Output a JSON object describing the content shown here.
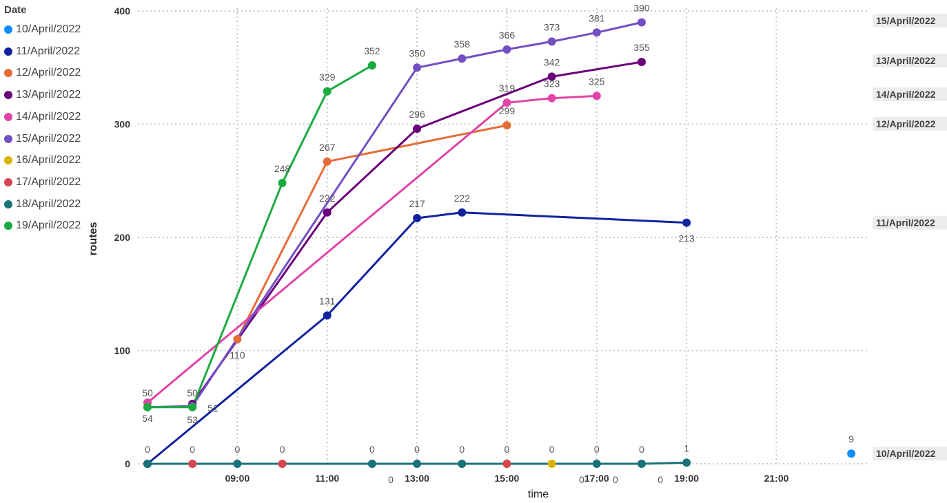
{
  "legend": {
    "title": "Date"
  },
  "chart_data": {
    "type": "line",
    "xlabel": "time",
    "ylabel": "routes",
    "xlim": [
      "07:00",
      "22:50"
    ],
    "ylim": [
      0,
      400
    ],
    "x_ticks": [
      "09:00",
      "11:00",
      "13:00",
      "15:00",
      "17:00",
      "19:00",
      "21:00"
    ],
    "y_ticks": [
      0,
      100,
      200,
      300,
      400
    ],
    "grid": true,
    "legend_position": "left",
    "series": [
      {
        "name": "10/April/2022",
        "color": "#118DFF",
        "end_label": "10/April/2022",
        "points": [
          {
            "x": "22:40",
            "y": 9
          }
        ]
      },
      {
        "name": "11/April/2022",
        "color": "#12239E",
        "end_label": "11/April/2022",
        "points": [
          {
            "x": "07:00",
            "y": 0
          },
          {
            "x": "11:00",
            "y": 131
          },
          {
            "x": "13:00",
            "y": 217
          },
          {
            "x": "14:00",
            "y": 222
          },
          {
            "x": "19:00",
            "y": 213
          }
        ]
      },
      {
        "name": "12/April/2022",
        "color": "#E66C37",
        "end_label": "12/April/2022",
        "points": [
          {
            "x": "09:00",
            "y": 110
          },
          {
            "x": "11:00",
            "y": 267
          },
          {
            "x": "15:00",
            "y": 299
          }
        ]
      },
      {
        "name": "13/April/2022",
        "color": "#6B007B",
        "end_label": "13/April/2022",
        "points": [
          {
            "x": "08:00",
            "y": 53
          },
          {
            "x": "11:00",
            "y": 222
          },
          {
            "x": "13:00",
            "y": 296
          },
          {
            "x": "16:00",
            "y": 342
          },
          {
            "x": "18:00",
            "y": 355
          }
        ]
      },
      {
        "name": "14/April/2022",
        "color": "#E044A7",
        "end_label": "14/April/2022",
        "points": [
          {
            "x": "07:00",
            "y": 54
          },
          {
            "x": "15:00",
            "y": 319
          },
          {
            "x": "16:00",
            "y": 323
          },
          {
            "x": "17:00",
            "y": 325
          }
        ]
      },
      {
        "name": "15/April/2022",
        "color": "#744EC2",
        "end_label": "15/April/2022",
        "points": [
          {
            "x": "07:00",
            "y": 50
          },
          {
            "x": "08:00",
            "y": 51
          },
          {
            "x": "13:00",
            "y": 350
          },
          {
            "x": "14:00",
            "y": 358
          },
          {
            "x": "15:00",
            "y": 366
          },
          {
            "x": "16:00",
            "y": 373
          },
          {
            "x": "17:00",
            "y": 381
          },
          {
            "x": "18:00",
            "y": 390
          }
        ]
      },
      {
        "name": "16/April/2022",
        "color": "#D9B300",
        "end_label": "",
        "points": [
          {
            "x": "16:00",
            "y": 0
          }
        ]
      },
      {
        "name": "17/April/2022",
        "color": "#D64550",
        "end_label": "",
        "points": [
          {
            "x": "08:00",
            "y": 0
          },
          {
            "x": "10:00",
            "y": 0
          },
          {
            "x": "15:00",
            "y": 0
          }
        ]
      },
      {
        "name": "18/April/2022",
        "color": "#197278",
        "end_label": "",
        "points": [
          {
            "x": "07:00",
            "y": 0
          },
          {
            "x": "09:00",
            "y": 0
          },
          {
            "x": "12:00",
            "y": 0
          },
          {
            "x": "13:00",
            "y": 0
          },
          {
            "x": "14:00",
            "y": 0
          },
          {
            "x": "17:00",
            "y": 0
          },
          {
            "x": "18:00",
            "y": 0
          },
          {
            "x": "19:00",
            "y": 1
          }
        ]
      },
      {
        "name": "19/April/2022",
        "color": "#1AAB40",
        "end_label": "",
        "points": [
          {
            "x": "07:00",
            "y": 50
          },
          {
            "x": "08:00",
            "y": 50
          },
          {
            "x": "10:00",
            "y": 248
          },
          {
            "x": "11:00",
            "y": 329
          },
          {
            "x": "12:00",
            "y": 352
          }
        ]
      }
    ],
    "data_labels": [
      {
        "text": "50",
        "x": "07:00",
        "y": 50,
        "pos": "above"
      },
      {
        "text": "54",
        "x": "07:00",
        "y": 54,
        "pos": "below"
      },
      {
        "text": "50",
        "x": "08:00",
        "y": 50,
        "pos": "above"
      },
      {
        "text": "53",
        "x": "08:00",
        "y": 53,
        "pos": "below"
      },
      {
        "text": "51",
        "x": "08:00",
        "y": 51,
        "pos": "right"
      },
      {
        "text": "110",
        "x": "09:00",
        "y": 110,
        "pos": "below"
      },
      {
        "text": "248",
        "x": "10:00",
        "y": 248,
        "pos": "above"
      },
      {
        "text": "329",
        "x": "11:00",
        "y": 329,
        "pos": "above"
      },
      {
        "text": "267",
        "x": "11:00",
        "y": 267,
        "pos": "above"
      },
      {
        "text": "222",
        "x": "11:00",
        "y": 222,
        "pos": "above"
      },
      {
        "text": "131",
        "x": "11:00",
        "y": 131,
        "pos": "above"
      },
      {
        "text": "352",
        "x": "12:00",
        "y": 352,
        "pos": "above"
      },
      {
        "text": "350",
        "x": "13:00",
        "y": 350,
        "pos": "above"
      },
      {
        "text": "296",
        "x": "13:00",
        "y": 296,
        "pos": "above"
      },
      {
        "text": "217",
        "x": "13:00",
        "y": 217,
        "pos": "above"
      },
      {
        "text": "358",
        "x": "14:00",
        "y": 358,
        "pos": "above"
      },
      {
        "text": "222",
        "x": "14:00",
        "y": 222,
        "pos": "above"
      },
      {
        "text": "366",
        "x": "15:00",
        "y": 366,
        "pos": "above"
      },
      {
        "text": "319",
        "x": "15:00",
        "y": 319,
        "pos": "above"
      },
      {
        "text": "299",
        "x": "15:00",
        "y": 299,
        "pos": "above"
      },
      {
        "text": "373",
        "x": "16:00",
        "y": 373,
        "pos": "above"
      },
      {
        "text": "342",
        "x": "16:00",
        "y": 342,
        "pos": "above"
      },
      {
        "text": "323",
        "x": "16:00",
        "y": 323,
        "pos": "above"
      },
      {
        "text": "381",
        "x": "17:00",
        "y": 381,
        "pos": "above"
      },
      {
        "text": "325",
        "x": "17:00",
        "y": 325,
        "pos": "above"
      },
      {
        "text": "390",
        "x": "18:00",
        "y": 390,
        "pos": "above"
      },
      {
        "text": "355",
        "x": "18:00",
        "y": 355,
        "pos": "above"
      },
      {
        "text": "213",
        "x": "19:00",
        "y": 213,
        "pos": "below"
      },
      {
        "text": "1",
        "x": "19:00",
        "y": 1,
        "pos": "above"
      },
      {
        "text": "9",
        "x": "22:40",
        "y": 9,
        "pos": "above"
      },
      {
        "text": "0",
        "x": "07:00",
        "y": 0,
        "pos": "above"
      },
      {
        "text": "0",
        "x": "08:00",
        "y": 0,
        "pos": "above"
      },
      {
        "text": "0",
        "x": "09:00",
        "y": 0,
        "pos": "above"
      },
      {
        "text": "0",
        "x": "10:00",
        "y": 0,
        "pos": "above"
      },
      {
        "text": "0",
        "x": "12:00",
        "y": 0,
        "pos": "above"
      },
      {
        "text": "0",
        "x": "12:25",
        "y": 0,
        "pos": "below"
      },
      {
        "text": "0",
        "x": "13:00",
        "y": 0,
        "pos": "above"
      },
      {
        "text": "0",
        "x": "14:00",
        "y": 0,
        "pos": "above"
      },
      {
        "text": "0",
        "x": "15:00",
        "y": 0,
        "pos": "above"
      },
      {
        "text": "0",
        "x": "16:00",
        "y": 0,
        "pos": "above"
      },
      {
        "text": "0",
        "x": "16:40",
        "y": 0,
        "pos": "below"
      },
      {
        "text": "0",
        "x": "17:00",
        "y": 0,
        "pos": "above"
      },
      {
        "text": "0",
        "x": "17:25",
        "y": 0,
        "pos": "below"
      },
      {
        "text": "0",
        "x": "18:00",
        "y": 0,
        "pos": "above"
      },
      {
        "text": "0",
        "x": "18:25",
        "y": 0,
        "pos": "below"
      }
    ]
  }
}
